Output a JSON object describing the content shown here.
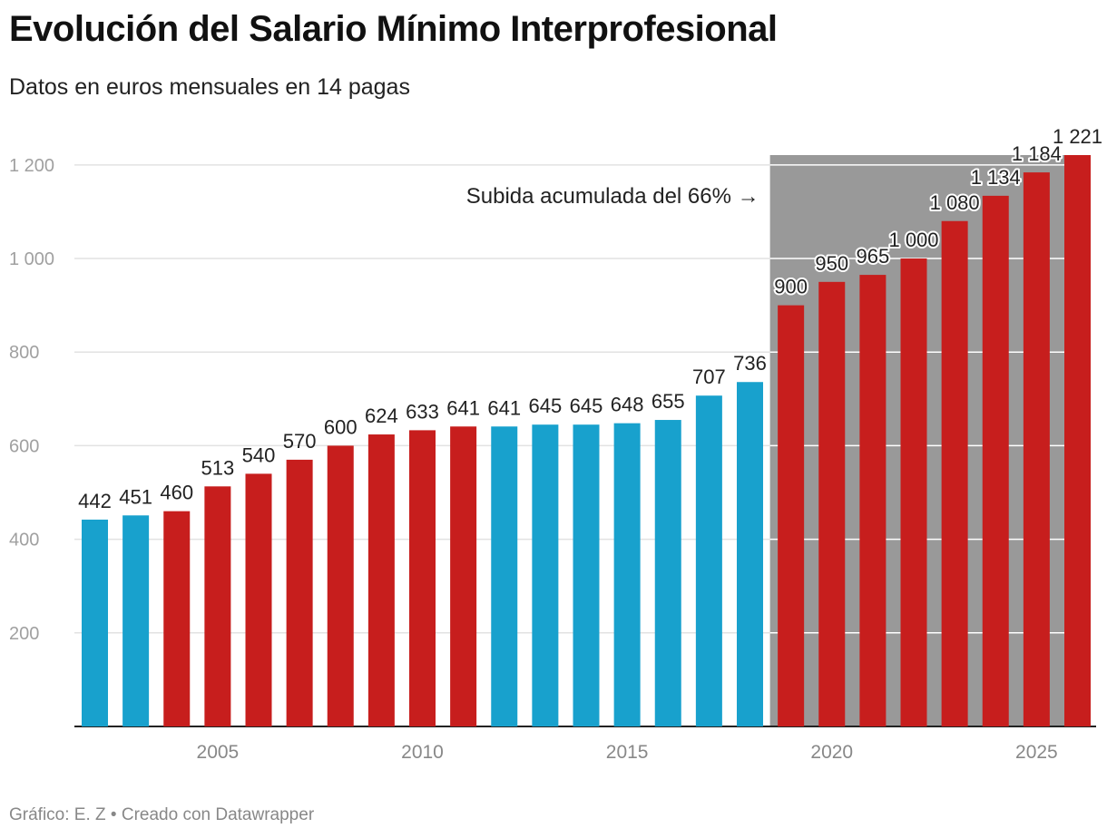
{
  "title": "Evolución del Salario Mínimo Interprofesional",
  "subtitle": "Datos en euros mensuales en 14 pagas",
  "footer": {
    "credit": "Gráfico: E. Z",
    "separator": "•",
    "tool": "Creado con Datawrapper"
  },
  "chart_data": {
    "type": "bar",
    "title": "Evolución del Salario Mínimo Interprofesional",
    "subtitle": "Datos en euros mensuales en 14 pagas",
    "xlabel": "",
    "ylabel": "",
    "categories": [
      2002,
      2003,
      2004,
      2005,
      2006,
      2007,
      2008,
      2009,
      2010,
      2011,
      2012,
      2013,
      2014,
      2015,
      2016,
      2017,
      2018,
      2019,
      2020,
      2021,
      2022,
      2023,
      2024,
      2025,
      2026
    ],
    "values": [
      442,
      451,
      460,
      513,
      540,
      570,
      600,
      624,
      633,
      641,
      641,
      645,
      645,
      648,
      655,
      707,
      736,
      900,
      950,
      965,
      1000,
      1080,
      1134,
      1184,
      1221
    ],
    "value_labels": [
      "442",
      "451",
      "460",
      "513",
      "540",
      "570",
      "600",
      "624",
      "633",
      "641",
      "641",
      "645",
      "645",
      "648",
      "655",
      "707",
      "736",
      "900",
      "950",
      "965",
      "1 000",
      "1 080",
      "1 134",
      "1 184",
      "1 221"
    ],
    "bar_colors": [
      "#18a1cd",
      "#18a1cd",
      "#c71e1d",
      "#c71e1d",
      "#c71e1d",
      "#c71e1d",
      "#c71e1d",
      "#c71e1d",
      "#c71e1d",
      "#c71e1d",
      "#18a1cd",
      "#18a1cd",
      "#18a1cd",
      "#18a1cd",
      "#18a1cd",
      "#18a1cd",
      "#18a1cd",
      "#c71e1d",
      "#c71e1d",
      "#c71e1d",
      "#c71e1d",
      "#c71e1d",
      "#c71e1d",
      "#c71e1d",
      "#c71e1d"
    ],
    "ylim": [
      0,
      1221
    ],
    "y_ticks": [
      200,
      400,
      600,
      800,
      1000,
      1200
    ],
    "y_tick_labels": [
      "200",
      "400",
      "600",
      "800",
      "1 000",
      "1 200"
    ],
    "x_ticks": [
      2005,
      2010,
      2015,
      2020,
      2025
    ],
    "x_tick_labels": [
      "2005",
      "2010",
      "2015",
      "2020",
      "2025"
    ],
    "grid": true,
    "highlight_range": {
      "from": 2019,
      "to": 2026,
      "color": "#999999"
    },
    "annotation": {
      "text": "Subida acumulada del 66% →"
    },
    "colors": {
      "blue": "#18a1cd",
      "red": "#c71e1d",
      "highlight": "#999999",
      "grid": "#e2e2e2",
      "axis": "#222222",
      "tick_text": "#a0a0a0"
    }
  }
}
